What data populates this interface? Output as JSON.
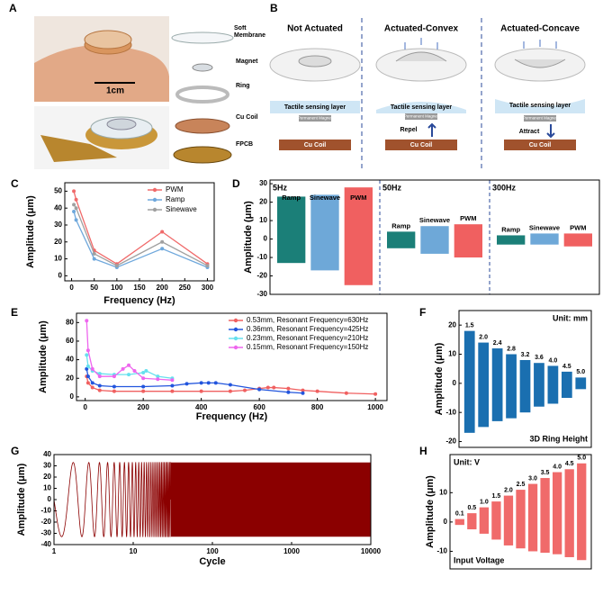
{
  "panel_a": {
    "label": "A",
    "scale_bar": "1cm",
    "parts": [
      "Soft Membrane",
      "Magnet",
      "Ring",
      "Cu Coil",
      "FPCB"
    ]
  },
  "panel_b": {
    "label": "B",
    "columns": [
      {
        "title": "Not Actuated",
        "layer": "Tactile sensing layer",
        "magnet": "Permanent Magnet",
        "coil": "Cu Coil"
      },
      {
        "title": "Actuated-Convex",
        "layer": "Tactile sensing layer",
        "magnet": "Permanent Magnet",
        "coil": "Cu Coil",
        "force": "Repel"
      },
      {
        "title": "Actuated-Concave",
        "layer": "Tactile sensing layer",
        "magnet": "Permanent Magnet",
        "coil": "Cu Coil",
        "force": "Attract"
      }
    ]
  },
  "chart_data": [
    {
      "panel": "C",
      "type": "line",
      "xlabel": "Frequency (Hz)",
      "ylabel": "Amplitude (μm)",
      "x": [
        5,
        10,
        50,
        100,
        200,
        300
      ],
      "xlim": [
        -15,
        315
      ],
      "xticks": [
        0,
        50,
        100,
        150,
        200,
        250,
        300
      ],
      "ylim": [
        -3,
        55
      ],
      "yticks": [
        0,
        10,
        20,
        30,
        40,
        50
      ],
      "legend": "upper right",
      "series": [
        {
          "name": "PWM",
          "color": "#f06a6a",
          "values": [
            50,
            45,
            15,
            7,
            26,
            7
          ]
        },
        {
          "name": "Ramp",
          "color": "#6fa8dc",
          "values": [
            38,
            33,
            10,
            5,
            16,
            5
          ]
        },
        {
          "name": "Sinewave",
          "color": "#a0a0a0",
          "values": [
            42,
            40,
            13,
            6,
            20,
            6
          ]
        }
      ]
    },
    {
      "panel": "D",
      "type": "band",
      "ylabel": "Amplitude (μm)",
      "ylim": [
        -30,
        32
      ],
      "yticks": [
        -30,
        -20,
        -10,
        0,
        10,
        20,
        30
      ],
      "groups": [
        {
          "name": "5Hz",
          "series": [
            {
              "name": "Ramp",
              "color": "#1b7f78",
              "max": 23,
              "min": -13
            },
            {
              "name": "Sinewave",
              "color": "#6ea8d8",
              "max": 24,
              "min": -17
            },
            {
              "name": "PWM",
              "color": "#f06060",
              "max": 28,
              "min": -25
            }
          ]
        },
        {
          "name": "50Hz",
          "series": [
            {
              "name": "Ramp",
              "color": "#1b7f78",
              "max": 4,
              "min": -5
            },
            {
              "name": "Sinewave",
              "color": "#6ea8d8",
              "max": 7,
              "min": -8
            },
            {
              "name": "PWM",
              "color": "#f06060",
              "max": 8,
              "min": -10
            }
          ]
        },
        {
          "name": "300Hz",
          "series": [
            {
              "name": "Ramp",
              "color": "#1b7f78",
              "max": 2,
              "min": -3
            },
            {
              "name": "Sinewave",
              "color": "#6ea8d8",
              "max": 3,
              "min": -3
            },
            {
              "name": "PWM",
              "color": "#f06060",
              "max": 3,
              "min": -4
            }
          ]
        }
      ]
    },
    {
      "panel": "E",
      "type": "line",
      "xlabel": "Frequency (Hz)",
      "ylabel": "Amplitude (μm)",
      "xlim": [
        -30,
        1040
      ],
      "xticks": [
        0,
        200,
        400,
        600,
        800,
        1000
      ],
      "ylim": [
        -4,
        90
      ],
      "yticks": [
        0,
        20,
        40,
        60,
        80
      ],
      "legend": "upper right",
      "series": [
        {
          "name": "0.53mm, Resonant Frequency=630Hz",
          "color": "#f06060",
          "x": [
            5,
            10,
            25,
            50,
            100,
            200,
            300,
            400,
            500,
            550,
            600,
            630,
            650,
            700,
            750,
            800,
            900,
            1000
          ],
          "values": [
            22,
            15,
            10,
            7,
            6,
            6,
            6,
            6,
            6,
            7,
            9,
            10,
            10,
            9,
            7,
            6,
            4,
            3
          ]
        },
        {
          "name": "0.36mm, Resonant Frequency=425Hz",
          "color": "#2255dd",
          "x": [
            5,
            10,
            25,
            50,
            100,
            200,
            300,
            350,
            400,
            425,
            450,
            500,
            600,
            700,
            750
          ],
          "values": [
            30,
            22,
            15,
            12,
            11,
            11,
            12,
            14,
            15,
            15,
            15,
            13,
            8,
            5,
            4
          ]
        },
        {
          "name": "0.23mm, Resonant Frequency=210Hz",
          "color": "#66e0ee",
          "x": [
            5,
            10,
            25,
            50,
            100,
            150,
            200,
            210,
            250,
            300
          ],
          "values": [
            45,
            33,
            28,
            25,
            24,
            24,
            26,
            28,
            22,
            20
          ]
        },
        {
          "name": "0.15mm, Resonant Frequency=150Hz",
          "color": "#ee66ee",
          "x": [
            5,
            10,
            25,
            50,
            100,
            130,
            150,
            170,
            200,
            250,
            300
          ],
          "values": [
            82,
            50,
            30,
            22,
            22,
            30,
            34,
            28,
            20,
            19,
            18
          ]
        }
      ]
    },
    {
      "panel": "F",
      "type": "range_bar",
      "ylabel": "Amplitude (μm)",
      "ylim": [
        -22,
        25
      ],
      "yticks": [
        -20,
        -10,
        0,
        10,
        20
      ],
      "color": "#1a6fb0",
      "categories": [
        "1.5",
        "2.0",
        "2.4",
        "2.8",
        "3.2",
        "3.6",
        "4.0",
        "4.5",
        "5.0"
      ],
      "max": [
        18,
        14,
        12,
        10,
        8,
        7,
        6,
        4,
        2
      ],
      "min": [
        -17,
        -15,
        -13,
        -12,
        -10,
        -8,
        -7,
        -5,
        -2
      ],
      "annotations": [
        {
          "text": "Unit: mm",
          "corner": "upper right"
        },
        {
          "text": "3D Ring Height",
          "corner": "lower right"
        }
      ]
    },
    {
      "panel": "G",
      "type": "chirp",
      "xlabel": "Cycle",
      "ylabel": "Amplitude (μm)",
      "xlog": true,
      "xlim": [
        1,
        10000
      ],
      "xticks": [
        1,
        10,
        100,
        1000,
        10000
      ],
      "ylim": [
        -40,
        40
      ],
      "yticks": [
        -40,
        -30,
        -20,
        -10,
        0,
        10,
        20,
        30,
        40
      ],
      "color": "#8b0000",
      "envelope": [
        -33,
        33
      ]
    },
    {
      "panel": "H",
      "type": "range_bar",
      "ylabel": "Amplitude (μm)",
      "ylim": [
        -16,
        23
      ],
      "yticks": [
        -10,
        0,
        10
      ],
      "color": "#f06a6a",
      "categories": [
        "0.1",
        "0.5",
        "1.0",
        "1.5",
        "2.0",
        "2.5",
        "3.0",
        "3.5",
        "4.0",
        "4.5",
        "5.0"
      ],
      "max": [
        1,
        3,
        5,
        7,
        9,
        11,
        13,
        15,
        17,
        18,
        20
      ],
      "min": [
        -1,
        -2.5,
        -4,
        -6,
        -8,
        -9,
        -10,
        -10.5,
        -11,
        -12,
        -13
      ],
      "annotations": [
        {
          "text": "Unit: V",
          "corner": "upper left"
        },
        {
          "text": "Input Voltage",
          "corner": "lower left"
        }
      ]
    }
  ]
}
